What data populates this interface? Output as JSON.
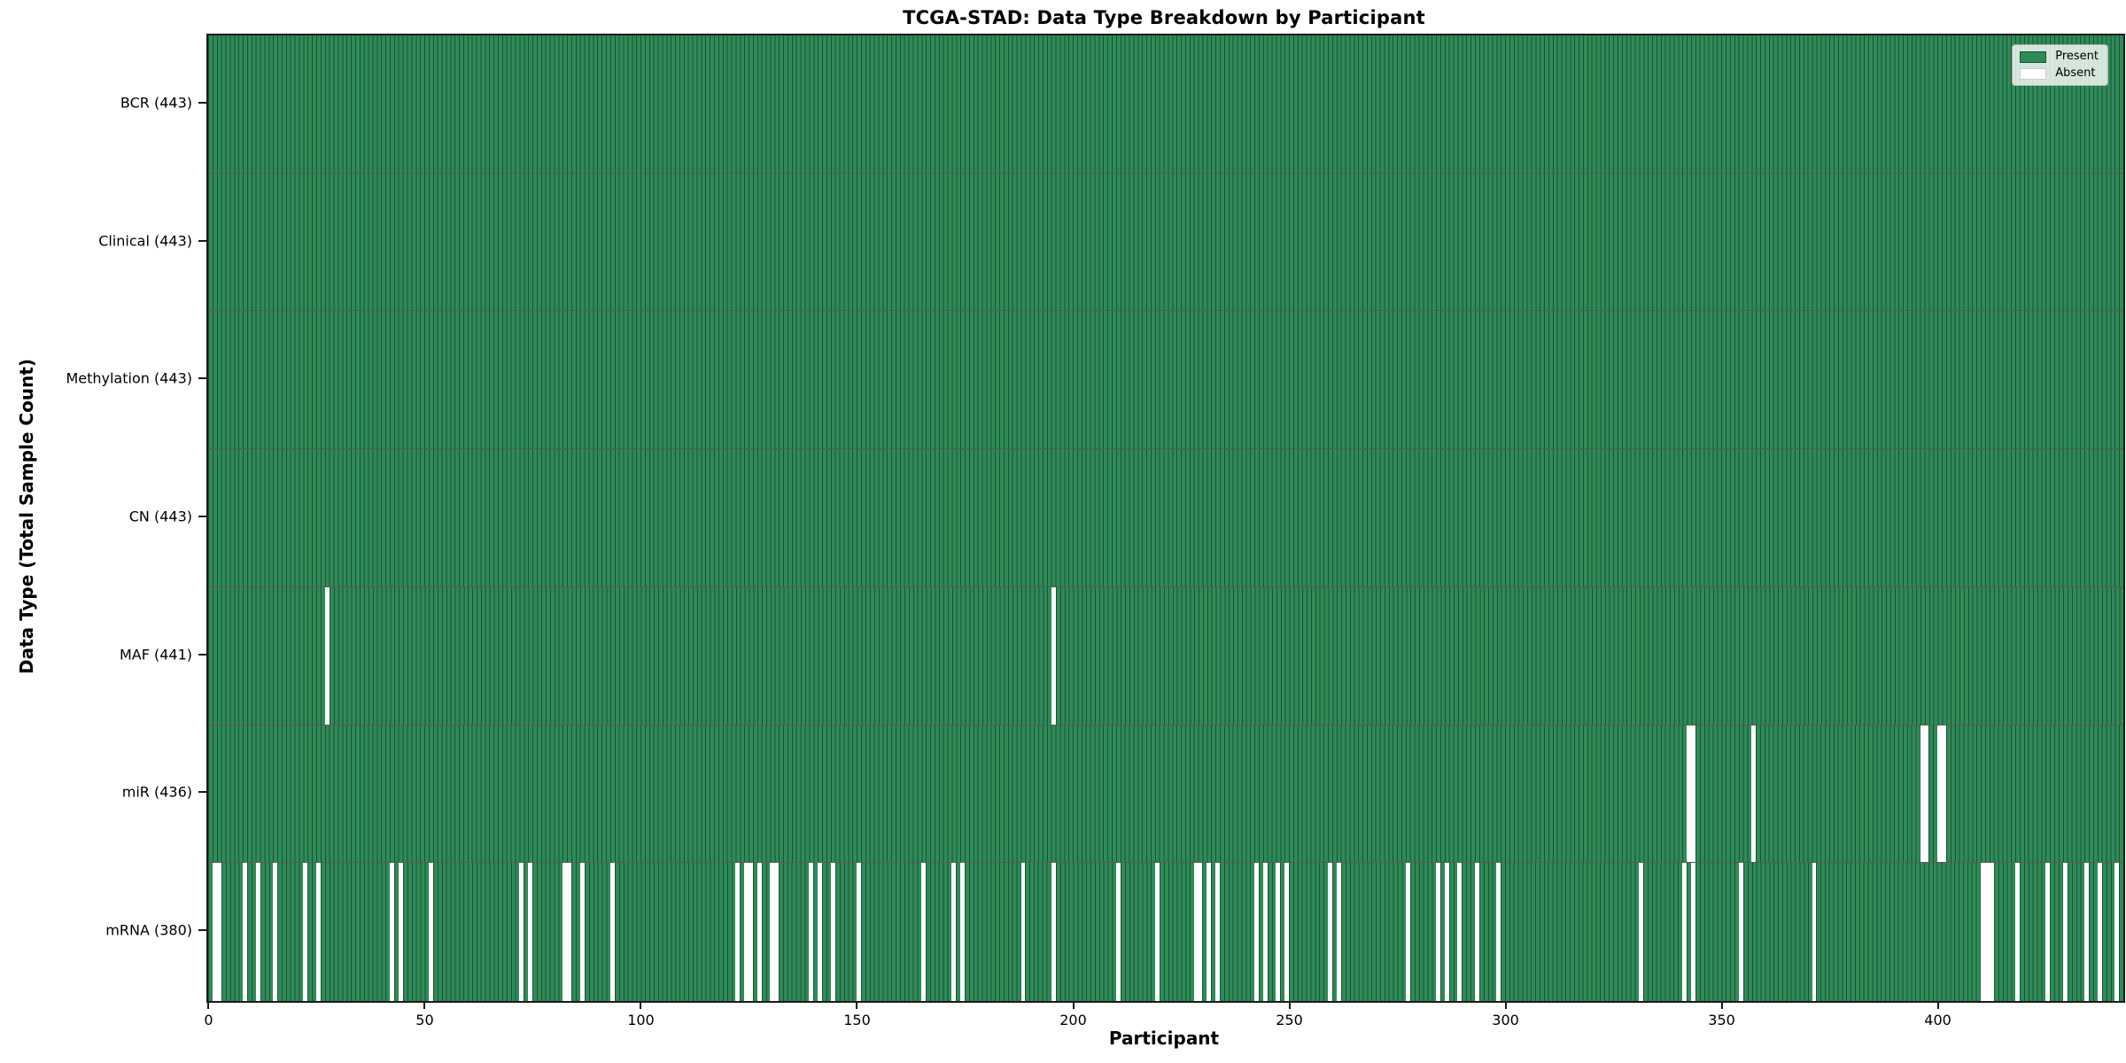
{
  "figure": {
    "title": "TCGA-STAD: Data Type Breakdown by Participant",
    "xlabel": "Participant",
    "ylabel": "Data Type (Total Sample Count)"
  },
  "legend": {
    "present_label": "Present",
    "absent_label": "Absent"
  },
  "colors": {
    "present": "#2e8b57",
    "absent": "#ffffff",
    "bar_edge": "#1d5134",
    "spine": "#1a1a1a",
    "row_divider": "rgba(0,0,0,0.65)",
    "legend_bg": "rgba(255,255,255,0.8)",
    "legend_border": "#b3b3b3",
    "text": "#000000"
  },
  "chart_data": {
    "type": "heatmap",
    "title": "TCGA-STAD: Data Type Breakdown by Participant",
    "xlabel": "Participant",
    "ylabel": "Data Type (Total Sample Count)",
    "legend_position": "upper right",
    "grid": false,
    "n_participants": 443,
    "x_ticks": [
      0,
      50,
      100,
      150,
      200,
      250,
      300,
      350,
      400
    ],
    "xlim": [
      -0.5,
      442.5
    ],
    "value_encoding": {
      "present": 1,
      "absent": 0
    },
    "legend": [
      {
        "label": "Present",
        "color": "#2e8b57"
      },
      {
        "label": "Absent",
        "color": "#ffffff"
      }
    ],
    "rows": [
      {
        "name": "BCR",
        "label": "BCR (443)",
        "count": 443,
        "absent": []
      },
      {
        "name": "Clinical",
        "label": "Clinical (443)",
        "count": 443,
        "absent": []
      },
      {
        "name": "Methylation",
        "label": "Methylation (443)",
        "count": 443,
        "absent": []
      },
      {
        "name": "CN",
        "label": "CN (443)",
        "count": 443,
        "absent": []
      },
      {
        "name": "MAF",
        "label": "MAF (441)",
        "count": 441,
        "absent": [
          27,
          195
        ]
      },
      {
        "name": "miR",
        "label": "miR (436)",
        "count": 436,
        "absent": [
          342,
          343,
          357,
          396,
          397,
          400,
          401
        ]
      },
      {
        "name": "mRNA",
        "label": "mRNA (380)",
        "count": 380,
        "absent": [
          1,
          2,
          8,
          11,
          15,
          22,
          25,
          42,
          44,
          51,
          72,
          74,
          82,
          83,
          86,
          93,
          122,
          124,
          125,
          127,
          130,
          131,
          139,
          141,
          144,
          150,
          165,
          172,
          174,
          188,
          195,
          210,
          219,
          228,
          229,
          231,
          233,
          242,
          244,
          247,
          249,
          259,
          261,
          277,
          284,
          286,
          289,
          293,
          298,
          331,
          341,
          343,
          354,
          371,
          410,
          411,
          412,
          418,
          425,
          429,
          434,
          437,
          441
        ]
      }
    ]
  }
}
